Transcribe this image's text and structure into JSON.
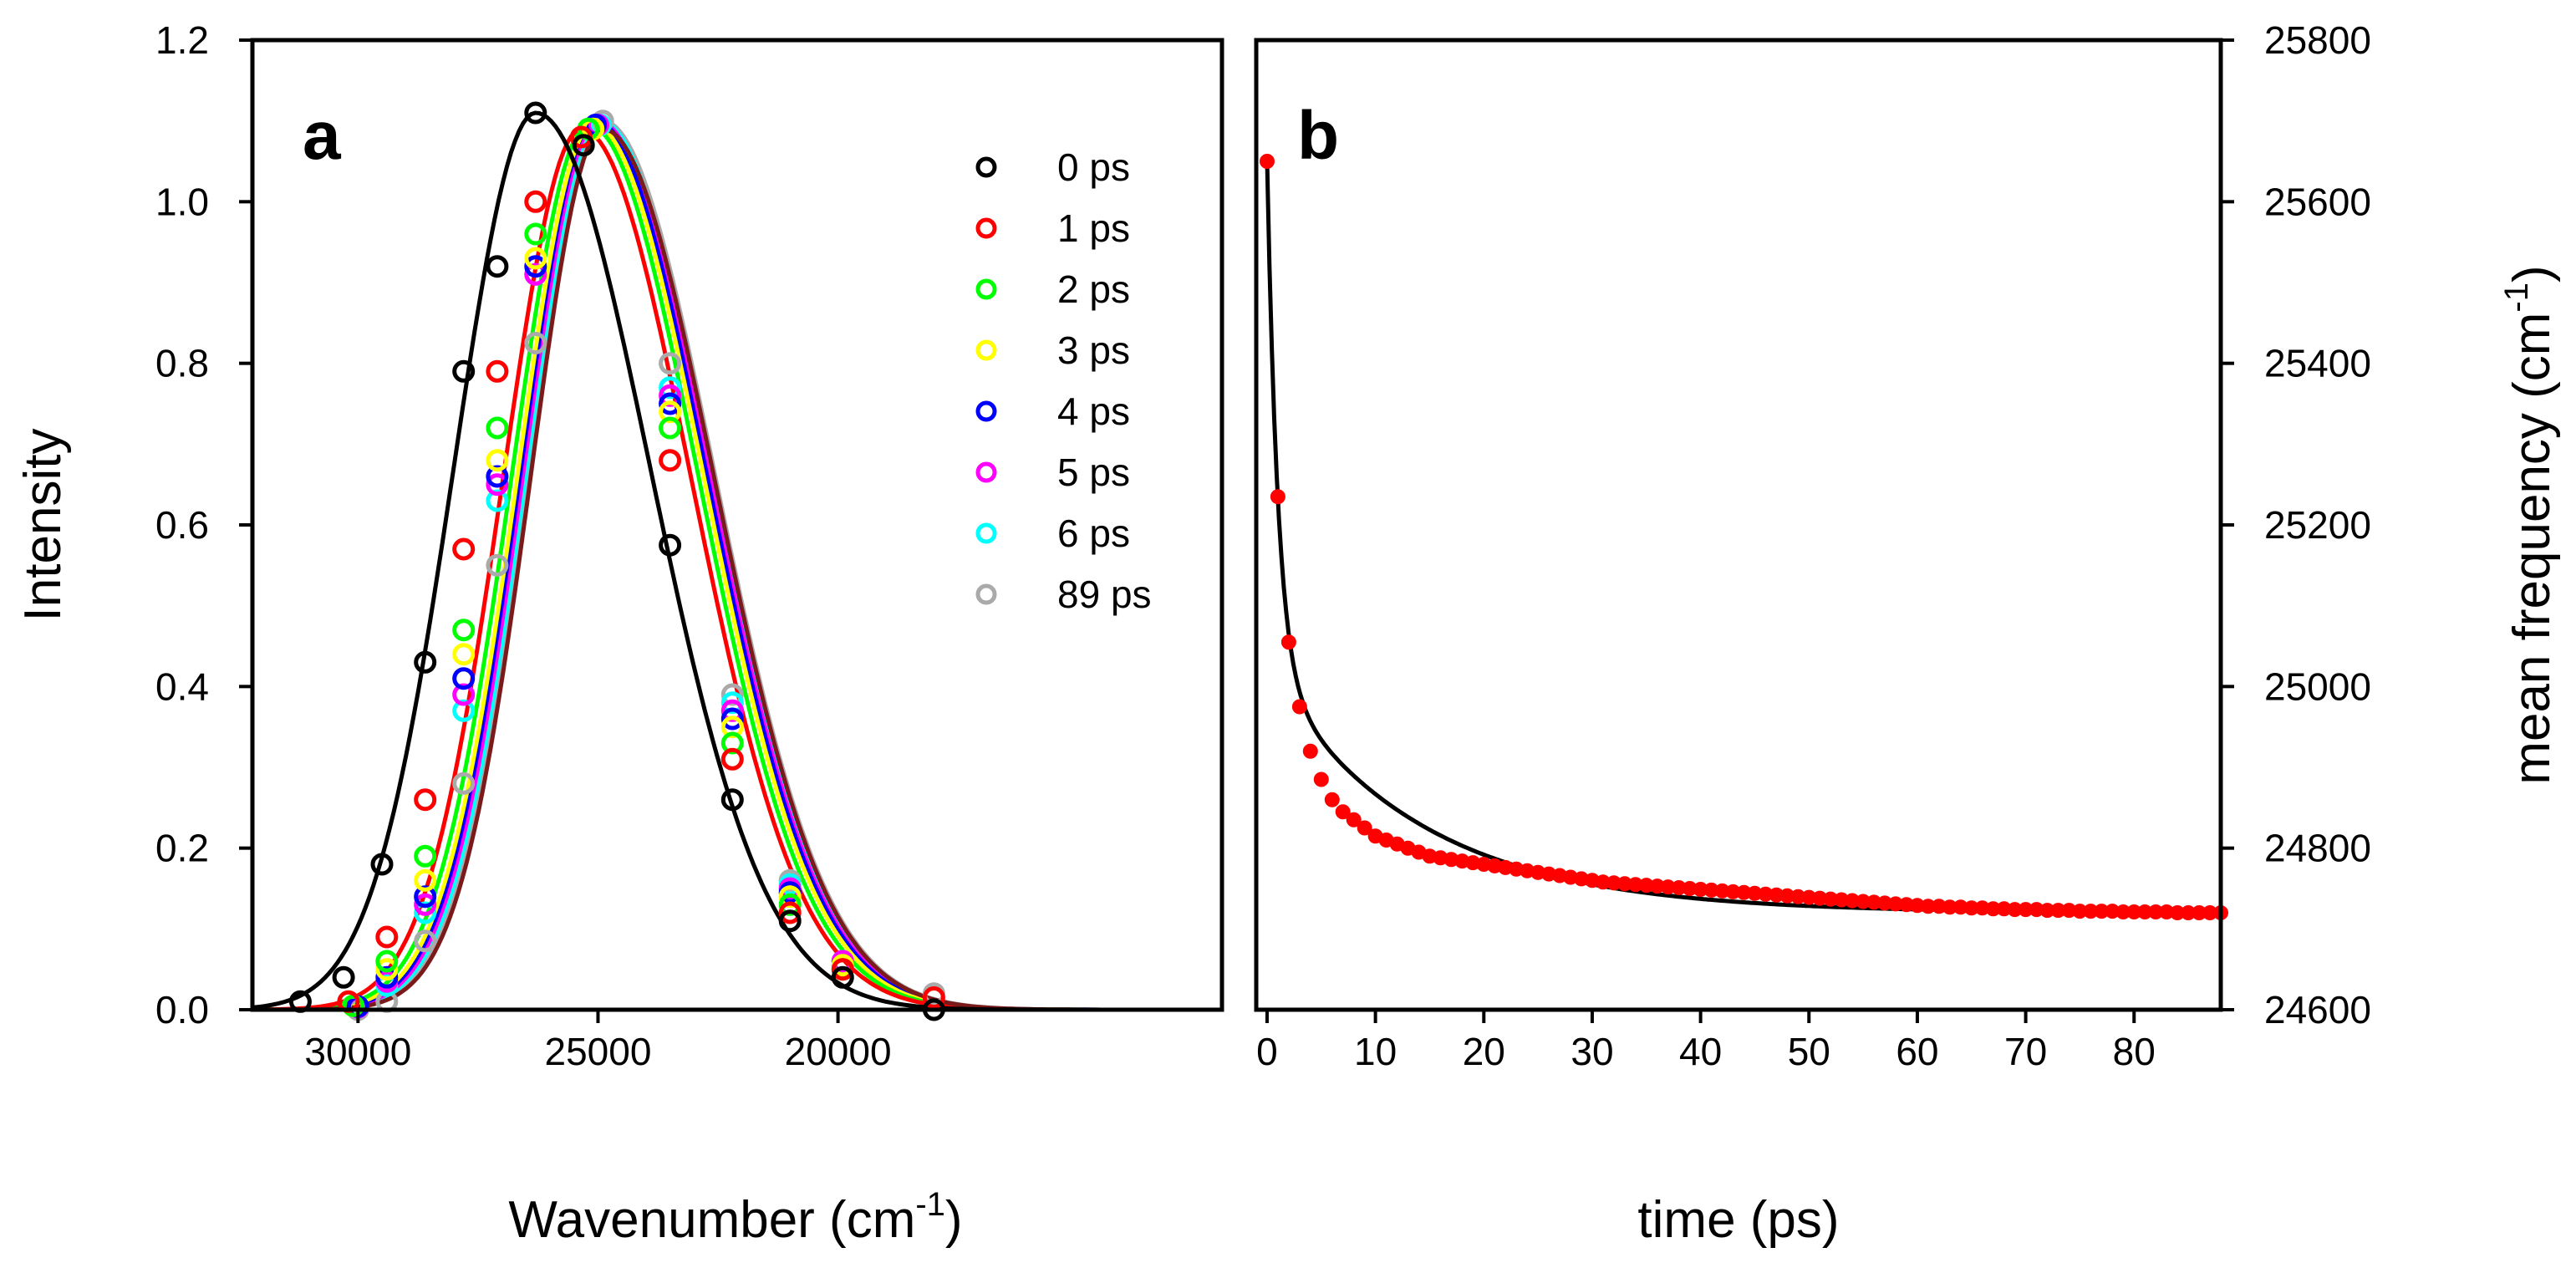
{
  "chart_data": [
    {
      "panel": "a",
      "type": "line",
      "panel_label": "a",
      "xlabel": "Wavenumber (cm",
      "xlabel_sup": "-1",
      "xlabel_end": ")",
      "ylabel": "Intensity",
      "xlim": [
        32200,
        12000
      ],
      "ylim": [
        0,
        1.2
      ],
      "x_reversed": true,
      "x_ticks": [
        30000,
        25000,
        20000
      ],
      "y_ticks": [
        "0.0",
        "0.2",
        "0.4",
        "0.6",
        "0.8",
        "1.0",
        "1.2"
      ],
      "legend_position": "top-right",
      "series": [
        {
          "name": "0 ps",
          "color": "#000000",
          "center": 26300,
          "amp": 1.11,
          "sigma_left": 1700,
          "sigma_right": 2380,
          "points": [
            [
              31200,
              0.01
            ],
            [
              30300,
              0.04
            ],
            [
              29500,
              0.18
            ],
            [
              28600,
              0.43
            ],
            [
              27800,
              0.79
            ],
            [
              27100,
              0.92
            ],
            [
              26300,
              1.11
            ],
            [
              25300,
              1.07
            ],
            [
              23500,
              0.575
            ],
            [
              22200,
              0.26
            ],
            [
              21000,
              0.11
            ],
            [
              19900,
              0.04
            ],
            [
              18000,
              0.0
            ]
          ]
        },
        {
          "name": "1 ps",
          "color": "#ff0000",
          "center": 25350,
          "amp": 1.09,
          "sigma_left": 1620,
          "sigma_right": 2280,
          "points": [
            [
              30200,
              0.01
            ],
            [
              29400,
              0.09
            ],
            [
              28600,
              0.26
            ],
            [
              27800,
              0.57
            ],
            [
              27100,
              0.79
            ],
            [
              26300,
              1.0
            ],
            [
              25350,
              1.08
            ],
            [
              23500,
              0.68
            ],
            [
              22200,
              0.31
            ],
            [
              21000,
              0.12
            ],
            [
              19900,
              0.05
            ],
            [
              18000,
              0.015
            ]
          ]
        },
        {
          "name": "2 ps",
          "color": "#00ff00",
          "center": 25200,
          "amp": 1.095,
          "sigma_left": 1590,
          "sigma_right": 2280,
          "points": [
            [
              30100,
              0.005
            ],
            [
              29400,
              0.06
            ],
            [
              28600,
              0.19
            ],
            [
              27800,
              0.47
            ],
            [
              27100,
              0.72
            ],
            [
              26300,
              0.96
            ],
            [
              25200,
              1.09
            ],
            [
              23500,
              0.72
            ],
            [
              22200,
              0.33
            ],
            [
              21000,
              0.13
            ],
            [
              19900,
              0.05
            ]
          ]
        },
        {
          "name": "3 ps",
          "color": "#ffff00",
          "center": 25100,
          "amp": 1.095,
          "sigma_left": 1570,
          "sigma_right": 2290,
          "points": [
            [
              30100,
              0.005
            ],
            [
              29400,
              0.05
            ],
            [
              28600,
              0.16
            ],
            [
              27800,
              0.44
            ],
            [
              27100,
              0.68
            ],
            [
              26300,
              0.93
            ],
            [
              25100,
              1.09
            ],
            [
              23500,
              0.74
            ],
            [
              22200,
              0.35
            ],
            [
              21000,
              0.14
            ],
            [
              19900,
              0.055
            ]
          ]
        },
        {
          "name": "4 ps",
          "color": "#0000ff",
          "center": 25050,
          "amp": 1.1,
          "sigma_left": 1560,
          "sigma_right": 2300,
          "points": [
            [
              30000,
              0.004
            ],
            [
              29400,
              0.04
            ],
            [
              28600,
              0.14
            ],
            [
              27800,
              0.41
            ],
            [
              27100,
              0.66
            ],
            [
              26300,
              0.92
            ],
            [
              25050,
              1.095
            ],
            [
              23500,
              0.75
            ],
            [
              22200,
              0.36
            ],
            [
              21000,
              0.145
            ],
            [
              19900,
              0.055
            ]
          ]
        },
        {
          "name": "5 ps",
          "color": "#ff00ff",
          "center": 25000,
          "amp": 1.1,
          "sigma_left": 1550,
          "sigma_right": 2300,
          "points": [
            [
              30000,
              0.003
            ],
            [
              29400,
              0.035
            ],
            [
              28600,
              0.13
            ],
            [
              27800,
              0.39
            ],
            [
              27100,
              0.65
            ],
            [
              26300,
              0.91
            ],
            [
              25000,
              1.095
            ],
            [
              23500,
              0.76
            ],
            [
              22200,
              0.37
            ],
            [
              21000,
              0.15
            ],
            [
              19900,
              0.06
            ]
          ]
        },
        {
          "name": "6 ps",
          "color": "#00ffff",
          "center": 24950,
          "amp": 1.1,
          "sigma_left": 1540,
          "sigma_right": 2300,
          "points": [
            [
              30000,
              0.003
            ],
            [
              29400,
              0.03
            ],
            [
              28600,
              0.12
            ],
            [
              27800,
              0.37
            ],
            [
              27100,
              0.63
            ],
            [
              26300,
              0.91
            ],
            [
              24950,
              1.095
            ],
            [
              23500,
              0.77
            ],
            [
              22200,
              0.38
            ],
            [
              21000,
              0.155
            ],
            [
              19900,
              0.06
            ]
          ]
        },
        {
          "name": "89 ps",
          "color": "#aaaaaa",
          "center": 24900,
          "amp": 1.1,
          "sigma_left": 1520,
          "sigma_right": 2320,
          "points": [
            [
              30000,
              0.0
            ],
            [
              29400,
              0.01
            ],
            [
              28600,
              0.085
            ],
            [
              27800,
              0.28
            ],
            [
              27100,
              0.55
            ],
            [
              26300,
              0.825
            ],
            [
              24900,
              1.1
            ],
            [
              23500,
              0.8
            ],
            [
              22200,
              0.39
            ],
            [
              21000,
              0.16
            ],
            [
              19900,
              0.06
            ],
            [
              18000,
              0.02
            ]
          ]
        }
      ],
      "extra_curves": [
        {
          "name": "fit-89ps-dark",
          "color": "#7b1a1a",
          "center": 24900,
          "amp": 1.09,
          "sigma_left": 1500,
          "sigma_right": 2310
        }
      ]
    },
    {
      "panel": "b",
      "type": "scatter",
      "panel_label": "b",
      "xlabel": "time (ps)",
      "ylabel": "mean frequency (cm",
      "ylabel_sup": "-1",
      "ylabel_end": ")",
      "xlim": [
        -1,
        88
      ],
      "ylim": [
        24600,
        25800
      ],
      "x_ticks": [
        0,
        10,
        20,
        30,
        40,
        50,
        60,
        70,
        80
      ],
      "y_ticks": [
        24600,
        24800,
        25000,
        25200,
        25400,
        25600,
        25800
      ],
      "y_axis_side": "right",
      "point_color": "#ff0000",
      "fit_color": "#000000",
      "fit_model": {
        "type": "biexponential",
        "y_inf": 24720,
        "a1": 630,
        "tau1": 1.0,
        "a2": 300,
        "tau2": 14
      },
      "points": [
        [
          0,
          25650
        ],
        [
          1,
          25235
        ],
        [
          2,
          25055
        ],
        [
          3,
          24975
        ],
        [
          4,
          24920
        ],
        [
          5,
          24885
        ],
        [
          6,
          24860
        ],
        [
          7,
          24845
        ],
        [
          8,
          24835
        ],
        [
          9,
          24825
        ],
        [
          10,
          24815
        ],
        [
          11,
          24810
        ],
        [
          12,
          24805
        ],
        [
          13,
          24800
        ],
        [
          14,
          24795
        ],
        [
          15,
          24790
        ],
        [
          16,
          24788
        ],
        [
          17,
          24786
        ],
        [
          18,
          24784
        ],
        [
          19,
          24782
        ],
        [
          20,
          24780
        ],
        [
          21,
          24778
        ],
        [
          22,
          24776
        ],
        [
          23,
          24774
        ],
        [
          24,
          24772
        ],
        [
          25,
          24770
        ],
        [
          26,
          24768
        ],
        [
          27,
          24766
        ],
        [
          28,
          24764
        ],
        [
          29,
          24762
        ],
        [
          30,
          24760
        ],
        [
          31,
          24758
        ],
        [
          32,
          24757
        ],
        [
          33,
          24756
        ],
        [
          34,
          24755
        ],
        [
          35,
          24754
        ],
        [
          36,
          24753
        ],
        [
          37,
          24752
        ],
        [
          38,
          24751
        ],
        [
          39,
          24750
        ],
        [
          40,
          24749
        ],
        [
          41,
          24748
        ],
        [
          42,
          24747
        ],
        [
          43,
          24746
        ],
        [
          44,
          24745
        ],
        [
          45,
          24744
        ],
        [
          46,
          24743
        ],
        [
          47,
          24742
        ],
        [
          48,
          24741
        ],
        [
          49,
          24740
        ],
        [
          50,
          24739
        ],
        [
          51,
          24738
        ],
        [
          52,
          24737
        ],
        [
          53,
          24736
        ],
        [
          54,
          24735
        ],
        [
          55,
          24734
        ],
        [
          56,
          24733
        ],
        [
          57,
          24732
        ],
        [
          58,
          24731
        ],
        [
          59,
          24730
        ],
        [
          60,
          24729
        ],
        [
          61,
          24728
        ],
        [
          62,
          24728
        ],
        [
          63,
          24727
        ],
        [
          64,
          24727
        ],
        [
          65,
          24726
        ],
        [
          66,
          24726
        ],
        [
          67,
          24725
        ],
        [
          68,
          24725
        ],
        [
          69,
          24724
        ],
        [
          70,
          24724
        ],
        [
          71,
          24724
        ],
        [
          72,
          24723
        ],
        [
          73,
          24723
        ],
        [
          74,
          24723
        ],
        [
          75,
          24722
        ],
        [
          76,
          24722
        ],
        [
          77,
          24722
        ],
        [
          78,
          24722
        ],
        [
          79,
          24721
        ],
        [
          80,
          24721
        ],
        [
          81,
          24721
        ],
        [
          82,
          24721
        ],
        [
          83,
          24721
        ],
        [
          84,
          24720
        ],
        [
          85,
          24720
        ],
        [
          86,
          24720
        ],
        [
          87,
          24720
        ],
        [
          88,
          24720
        ]
      ]
    }
  ]
}
